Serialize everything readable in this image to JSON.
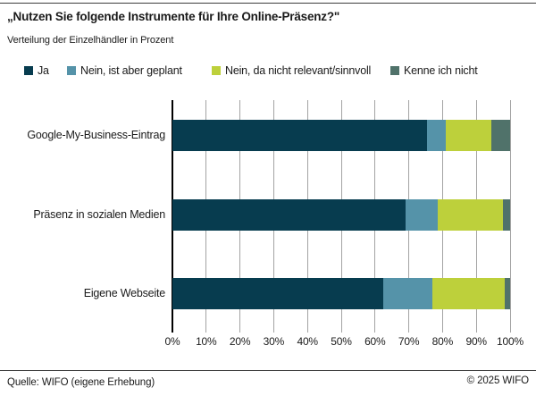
{
  "chart_data": {
    "type": "bar",
    "orientation": "horizontal",
    "stacked": true,
    "title": "„Nutzen Sie folgende Instrumente für Ihre Online-Präsenz?\"",
    "subtitle": "Verteilung der Einzelhändler in Prozent",
    "categories": [
      "Google-My-Business-Eintrag",
      "Präsenz in sozialen Medien",
      "Eigene Webseite"
    ],
    "series": [
      {
        "name": "Ja",
        "color": "#073c4f",
        "values": [
          75.5,
          69.0,
          62.5
        ]
      },
      {
        "name": "Nein, ist aber geplant",
        "color": "#5593a9",
        "values": [
          5.5,
          9.5,
          14.5
        ]
      },
      {
        "name": "Nein, da nicht relevant/sinnvoll",
        "color": "#bdd03b",
        "values": [
          13.5,
          19.5,
          21.5
        ]
      },
      {
        "name": "Kenne ich nicht",
        "color": "#50726a",
        "values": [
          5.5,
          2.0,
          1.5
        ]
      }
    ],
    "x_ticks": [
      "0%",
      "10%",
      "20%",
      "30%",
      "40%",
      "50%",
      "60%",
      "70%",
      "80%",
      "90%",
      "100%"
    ],
    "xlim": [
      0,
      100
    ],
    "grid": true,
    "legend_position": "top"
  },
  "footer": {
    "source": "Quelle: WIFO (eigene Erhebung)",
    "copyright": "© 2025 WIFO"
  }
}
